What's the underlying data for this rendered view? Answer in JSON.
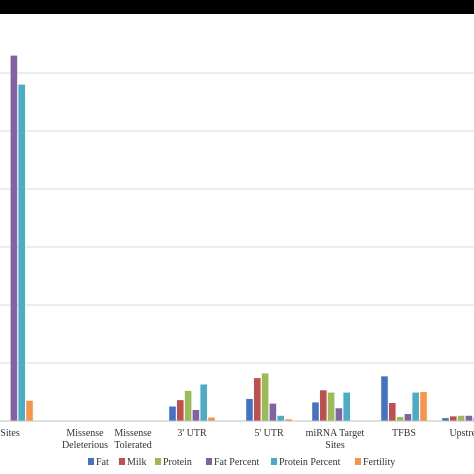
{
  "chart_data": {
    "type": "bar",
    "categories": [
      [
        "Sites"
      ],
      [
        "Missense",
        "Deleterious"
      ],
      [
        "Missense",
        "Tolerated"
      ],
      [
        "3' UTR"
      ],
      [
        "5' UTR"
      ],
      [
        "miRNA Target",
        "Sites"
      ],
      [
        "TFBS"
      ],
      [
        "Upstrea"
      ]
    ],
    "series": [
      {
        "name": "Fat",
        "color": "#4472C4",
        "values": [
          null,
          0,
          0,
          2.5,
          3.8,
          3.2,
          7.7,
          0.5
        ]
      },
      {
        "name": "Milk",
        "color": "#C0504D",
        "values": [
          null,
          0,
          0,
          3.6,
          7.4,
          5.3,
          3.1,
          0.8
        ]
      },
      {
        "name": "Protein",
        "color": "#9BBB59",
        "values": [
          null,
          0,
          0,
          5.2,
          8.2,
          4.9,
          0.7,
          0.9
        ]
      },
      {
        "name": "Fat Percent",
        "color": "#8064A2",
        "values": [
          63,
          0,
          0,
          1.9,
          3.0,
          2.2,
          1.2,
          0.9
        ]
      },
      {
        "name": "Protein Percent",
        "color": "#4BACC6",
        "values": [
          58,
          0,
          0,
          6.3,
          0.9,
          4.9,
          4.9,
          0.6
        ]
      },
      {
        "name": "Fertility",
        "color": "#F79646",
        "values": [
          3.5,
          0,
          0,
          0.6,
          0.3,
          0,
          5.0,
          0
        ]
      }
    ],
    "ylim": [
      0,
      70
    ],
    "grid": true,
    "legend_position": "bottom"
  }
}
